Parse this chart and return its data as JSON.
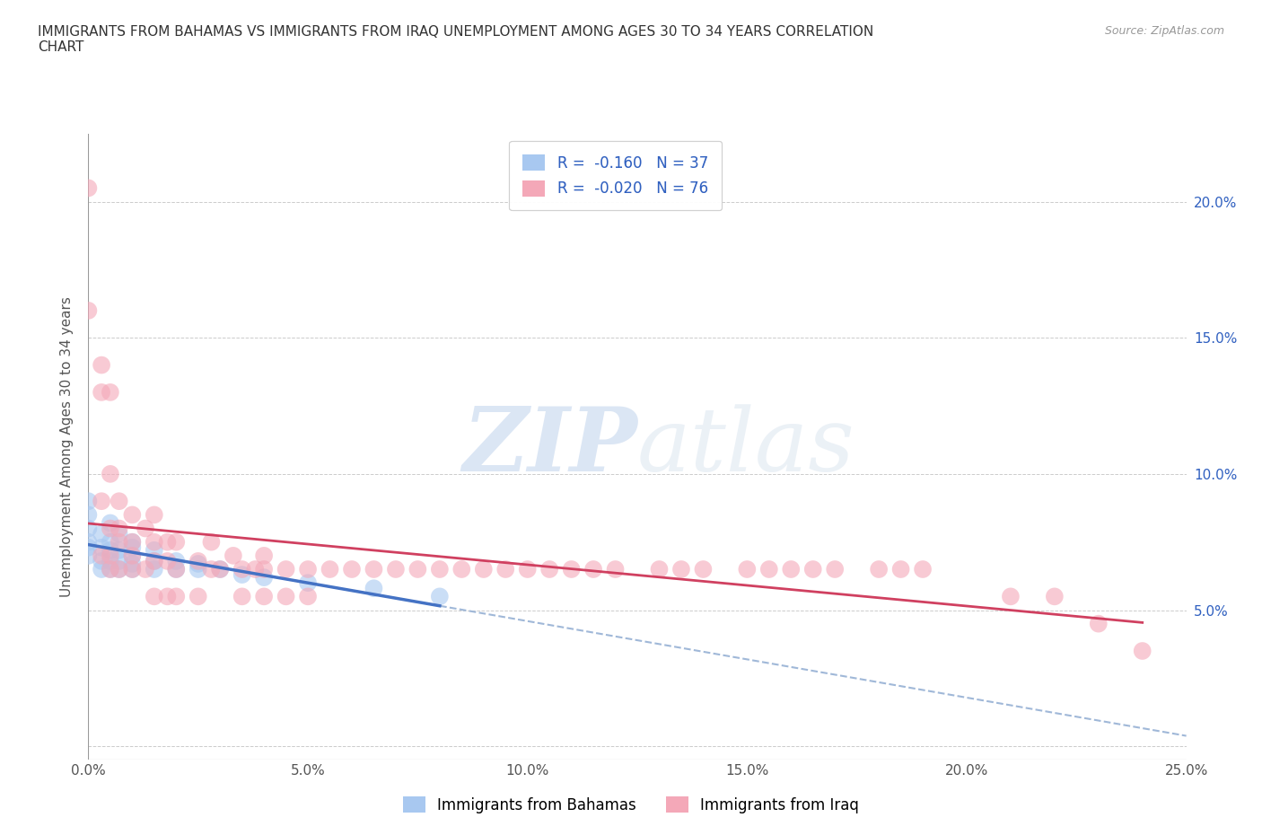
{
  "title": "IMMIGRANTS FROM BAHAMAS VS IMMIGRANTS FROM IRAQ UNEMPLOYMENT AMONG AGES 30 TO 34 YEARS CORRELATION\nCHART",
  "source": "Source: ZipAtlas.com",
  "ylabel": "Unemployment Among Ages 30 to 34 years",
  "legend_label1": "Immigrants from Bahamas",
  "legend_label2": "Immigrants from Iraq",
  "r1": "-0.160",
  "n1": "37",
  "r2": "-0.020",
  "n2": "76",
  "xlim": [
    0.0,
    0.25
  ],
  "ylim": [
    -0.005,
    0.225
  ],
  "xticks": [
    0.0,
    0.05,
    0.1,
    0.15,
    0.2,
    0.25
  ],
  "yticks": [
    0.0,
    0.05,
    0.1,
    0.15,
    0.2
  ],
  "ytick_labels_right": [
    "",
    "5.0%",
    "10.0%",
    "15.0%",
    "20.0%"
  ],
  "xtick_labels": [
    "0.0%",
    "5.0%",
    "10.0%",
    "15.0%",
    "20.0%",
    "25.0%"
  ],
  "color_bahamas": "#a8c8f0",
  "color_iraq": "#f4a8b8",
  "trendline_bahamas": "#4472c4",
  "trendline_iraq": "#d04060",
  "trendline_dash_color": "#a0b8d8",
  "watermark_zip": "ZIP",
  "watermark_atlas": "atlas",
  "bahamas_x": [
    0.0,
    0.0,
    0.0,
    0.0,
    0.0,
    0.0,
    0.003,
    0.003,
    0.003,
    0.003,
    0.005,
    0.005,
    0.005,
    0.005,
    0.005,
    0.007,
    0.007,
    0.007,
    0.007,
    0.01,
    0.01,
    0.01,
    0.01,
    0.01,
    0.015,
    0.015,
    0.015,
    0.02,
    0.02,
    0.025,
    0.025,
    0.03,
    0.035,
    0.04,
    0.05,
    0.065,
    0.08
  ],
  "bahamas_y": [
    0.07,
    0.073,
    0.075,
    0.08,
    0.085,
    0.09,
    0.065,
    0.068,
    0.073,
    0.078,
    0.065,
    0.068,
    0.072,
    0.075,
    0.082,
    0.065,
    0.068,
    0.072,
    0.078,
    0.065,
    0.067,
    0.07,
    0.073,
    0.075,
    0.065,
    0.068,
    0.072,
    0.065,
    0.068,
    0.065,
    0.067,
    0.065,
    0.063,
    0.062,
    0.06,
    0.058,
    0.055
  ],
  "iraq_x": [
    0.0,
    0.0,
    0.003,
    0.003,
    0.003,
    0.003,
    0.005,
    0.005,
    0.005,
    0.005,
    0.005,
    0.007,
    0.007,
    0.007,
    0.007,
    0.01,
    0.01,
    0.01,
    0.01,
    0.013,
    0.013,
    0.015,
    0.015,
    0.015,
    0.015,
    0.018,
    0.018,
    0.018,
    0.02,
    0.02,
    0.02,
    0.025,
    0.025,
    0.028,
    0.028,
    0.03,
    0.033,
    0.035,
    0.035,
    0.038,
    0.04,
    0.04,
    0.04,
    0.045,
    0.045,
    0.05,
    0.05,
    0.055,
    0.06,
    0.065,
    0.07,
    0.075,
    0.08,
    0.085,
    0.09,
    0.095,
    0.1,
    0.105,
    0.11,
    0.115,
    0.12,
    0.13,
    0.135,
    0.14,
    0.15,
    0.155,
    0.16,
    0.165,
    0.17,
    0.18,
    0.185,
    0.19,
    0.21,
    0.22,
    0.23,
    0.24
  ],
  "iraq_y": [
    0.205,
    0.16,
    0.14,
    0.13,
    0.09,
    0.07,
    0.13,
    0.1,
    0.08,
    0.07,
    0.065,
    0.09,
    0.08,
    0.075,
    0.065,
    0.085,
    0.075,
    0.07,
    0.065,
    0.08,
    0.065,
    0.085,
    0.075,
    0.068,
    0.055,
    0.075,
    0.068,
    0.055,
    0.075,
    0.065,
    0.055,
    0.068,
    0.055,
    0.075,
    0.065,
    0.065,
    0.07,
    0.055,
    0.065,
    0.065,
    0.07,
    0.065,
    0.055,
    0.065,
    0.055,
    0.065,
    0.055,
    0.065,
    0.065,
    0.065,
    0.065,
    0.065,
    0.065,
    0.065,
    0.065,
    0.065,
    0.065,
    0.065,
    0.065,
    0.065,
    0.065,
    0.065,
    0.065,
    0.065,
    0.065,
    0.065,
    0.065,
    0.065,
    0.065,
    0.065,
    0.065,
    0.065,
    0.055,
    0.055,
    0.045,
    0.035
  ]
}
